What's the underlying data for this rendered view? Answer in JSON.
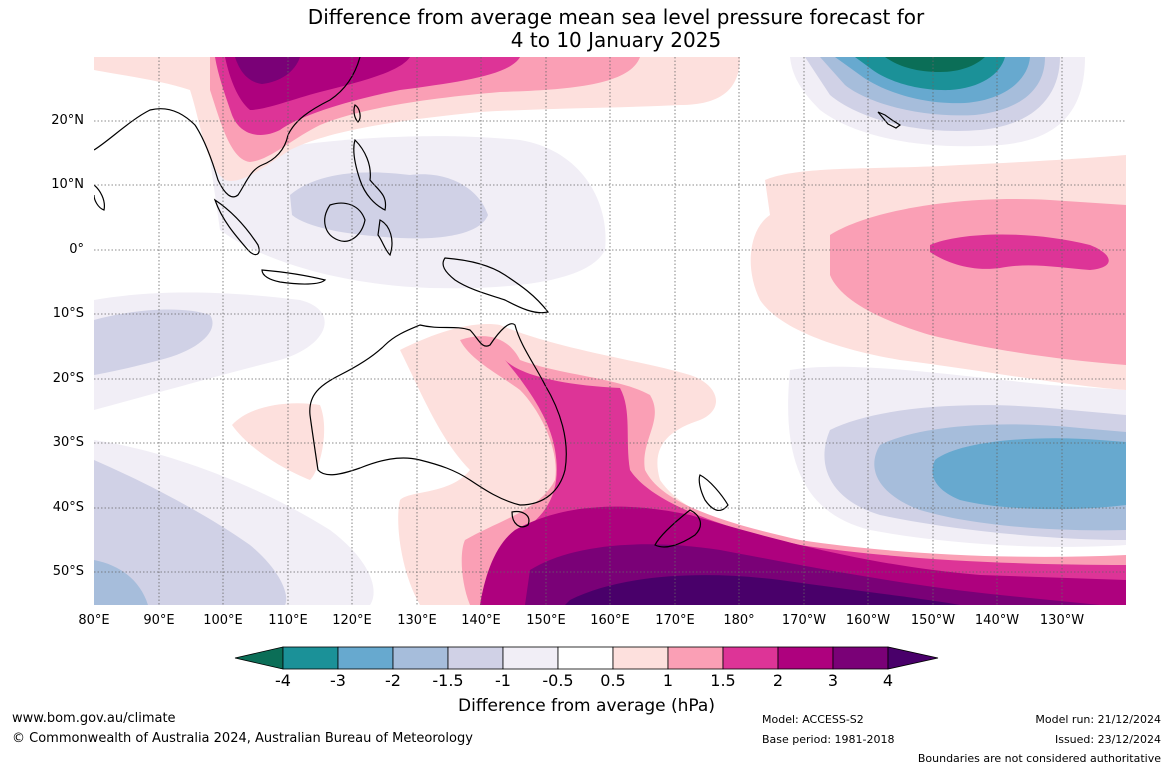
{
  "title_line1": "Difference from average mean sea level pressure forecast for",
  "title_line2": "4 to 10 January 2025",
  "lat_labels": [
    "20°N",
    "10°N",
    "0°",
    "10°S",
    "20°S",
    "30°S",
    "40°S",
    "50°S"
  ],
  "lon_labels": [
    "80°E",
    "90°E",
    "100°E",
    "110°E",
    "120°E",
    "130°E",
    "140°E",
    "150°E",
    "160°E",
    "170°E",
    "180°",
    "170°W",
    "160°W",
    "150°W",
    "140°W",
    "130°W"
  ],
  "colorbar": {
    "title": "Difference from average (hPa)",
    "ticks": [
      "-4",
      "-3",
      "-2",
      "-1.5",
      "-1",
      "-0.5",
      "0.5",
      "1",
      "1.5",
      "2",
      "3",
      "4"
    ],
    "colors": [
      "#0b6e57",
      "#1b9198",
      "#67a9cf",
      "#a6bddb",
      "#d0d1e6",
      "#f1eef6",
      "#ffffff",
      "#fde0dd",
      "#fa9fb5",
      "#dd3497",
      "#ae017e",
      "#7a0177",
      "#49006a"
    ]
  },
  "footer": {
    "url": "www.bom.gov.au/climate",
    "copyright": "© Commonwealth of Australia 2024, Australian Bureau of Meteorology",
    "model": "Model: ACCESS-S2",
    "base_period": "Base period: 1981-2018",
    "model_run": "Model run: 21/12/2024",
    "issued": "Issued: 23/12/2024",
    "disclaimer": "Boundaries are not considered authoritative"
  }
}
